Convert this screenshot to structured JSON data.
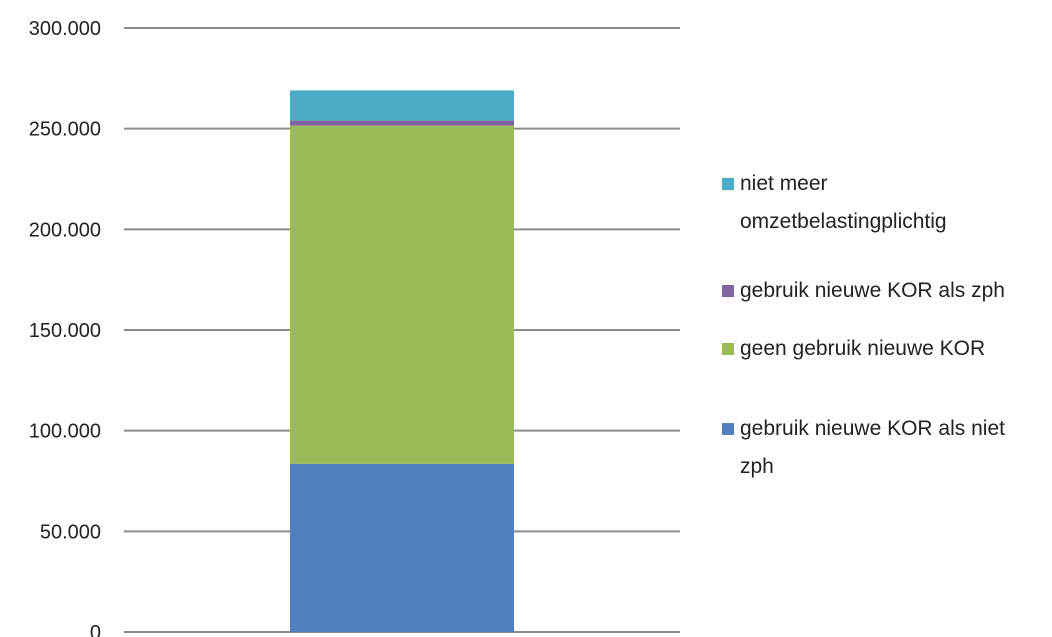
{
  "chart_data": {
    "type": "bar",
    "stacked": true,
    "categories": [
      ""
    ],
    "ylim": [
      0,
      300000
    ],
    "yticks": [
      0,
      50000,
      100000,
      150000,
      200000,
      250000,
      300000
    ],
    "ytick_labels": [
      "0",
      "50.000",
      "100.000",
      "150.000",
      "200.000",
      "250.000",
      "300.000"
    ],
    "grid": true,
    "legend_position": "right",
    "series": [
      {
        "name": "gebruik nieuwe KOR als niet zph",
        "values": [
          83500
        ],
        "color": "#4f81bd"
      },
      {
        "name": "geen gebruik nieuwe KOR",
        "values": [
          168000
        ],
        "color": "#9bbb59"
      },
      {
        "name": "gebruik nieuwe KOR als zph",
        "values": [
          2500
        ],
        "color": "#8064a2"
      },
      {
        "name": "niet meer omzetbelastingplichtig",
        "values": [
          15000
        ],
        "color": "#4bacc6"
      }
    ],
    "legend": [
      {
        "lines": [
          "niet meer",
          "omzetbelastingplichtig"
        ],
        "color": "#4bacc6"
      },
      {
        "lines": [
          "gebruik nieuwe KOR als zph"
        ],
        "color": "#8064a2"
      },
      {
        "lines": [
          "geen gebruik nieuwe KOR"
        ],
        "color": "#9bbb59"
      },
      {
        "lines": [
          "gebruik nieuwe KOR als niet",
          "zph"
        ],
        "color": "#4f81bd"
      }
    ]
  }
}
